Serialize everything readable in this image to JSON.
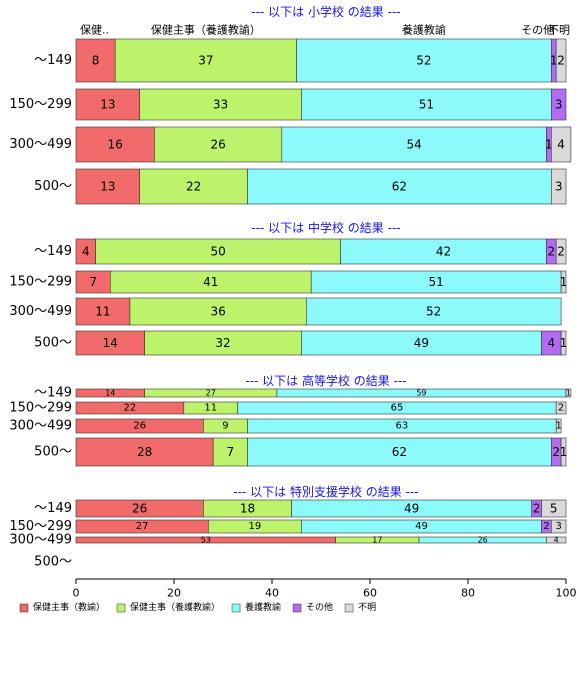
{
  "chart_data": {
    "type": "bar",
    "orientation": "horizontal",
    "stacked": true,
    "xlim": [
      0,
      100
    ],
    "x_ticks": [
      0,
      20,
      40,
      60,
      80,
      100
    ],
    "grid": false,
    "legend_position": "bottom-left",
    "series": [
      {
        "name": "保健主事（教諭）",
        "color": "#F26B6B"
      },
      {
        "name": "保健主事（養護教諭）",
        "color": "#BDF26B"
      },
      {
        "name": "養護教諭",
        "color": "#8CFAFA"
      },
      {
        "name": "その他",
        "color": "#B36BF2"
      },
      {
        "name": "不明",
        "color": "#D9D9D9"
      }
    ],
    "column_headers": [
      "保健..",
      "保健主事（養護教諭）",
      "養護教諭",
      "その他",
      "不明"
    ],
    "panels": [
      {
        "title": "--- 以下は 小学校 の結果 ---",
        "categories": [
          "〜149",
          "150〜299",
          "300〜499",
          "500〜"
        ],
        "values": [
          [
            8,
            37,
            52,
            1,
            2
          ],
          [
            13,
            33,
            51,
            3,
            0
          ],
          [
            16,
            26,
            54,
            1,
            4
          ],
          [
            13,
            22,
            62,
            0,
            3
          ]
        ],
        "labels": [
          [
            "8",
            "37",
            "52",
            "1",
            "2"
          ],
          [
            "13",
            "33",
            "51",
            "3",
            ""
          ],
          [
            "16",
            "26",
            "54",
            "1",
            "4"
          ],
          [
            "13",
            "22",
            "62",
            "",
            "3"
          ]
        ]
      },
      {
        "title": "--- 以下は 中学校 の結果 ---",
        "categories": [
          "〜149",
          "150〜299",
          "300〜499",
          "500〜"
        ],
        "values": [
          [
            4,
            50,
            42,
            2,
            2
          ],
          [
            7,
            41,
            51,
            0,
            1
          ],
          [
            11,
            36,
            52,
            0,
            0
          ],
          [
            14,
            32,
            49,
            4,
            1
          ]
        ],
        "labels": [
          [
            "4",
            "50",
            "42",
            "2",
            "2"
          ],
          [
            "7",
            "41",
            "51",
            "",
            "1"
          ],
          [
            "11",
            "36",
            "52",
            "",
            ""
          ],
          [
            "14",
            "32",
            "49",
            "4",
            "1"
          ]
        ]
      },
      {
        "title": "--- 以下は 高等学校 の結果 ---",
        "categories": [
          "〜149",
          "150〜299",
          "300〜499",
          "500〜"
        ],
        "values": [
          [
            14,
            27,
            59,
            0,
            1
          ],
          [
            22,
            11,
            65,
            0,
            2
          ],
          [
            26,
            9,
            63,
            0,
            1
          ],
          [
            28,
            7,
            62,
            2,
            1
          ]
        ],
        "labels": [
          [
            "14",
            "27",
            "59",
            "",
            "1"
          ],
          [
            "22",
            "11",
            "65",
            "",
            "2"
          ],
          [
            "26",
            "9",
            "63",
            "",
            "1"
          ],
          [
            "28",
            "7",
            "62",
            "2",
            "1"
          ]
        ]
      },
      {
        "title": "--- 以下は 特別支援学校 の結果 ---",
        "categories": [
          "〜149",
          "150〜299",
          "300〜499",
          "500〜"
        ],
        "values": [
          [
            26,
            18,
            49,
            2,
            5
          ],
          [
            27,
            19,
            49,
            2,
            3
          ],
          [
            53,
            17,
            26,
            0,
            4
          ],
          [
            0,
            0,
            0,
            0,
            0
          ]
        ],
        "labels": [
          [
            "26",
            "18",
            "49",
            "2",
            "5"
          ],
          [
            "27",
            "19",
            "49",
            "2",
            "3"
          ],
          [
            "53",
            "17",
            "26",
            "",
            "4"
          ],
          [
            "",
            "",
            "",
            "",
            ""
          ]
        ]
      }
    ]
  }
}
